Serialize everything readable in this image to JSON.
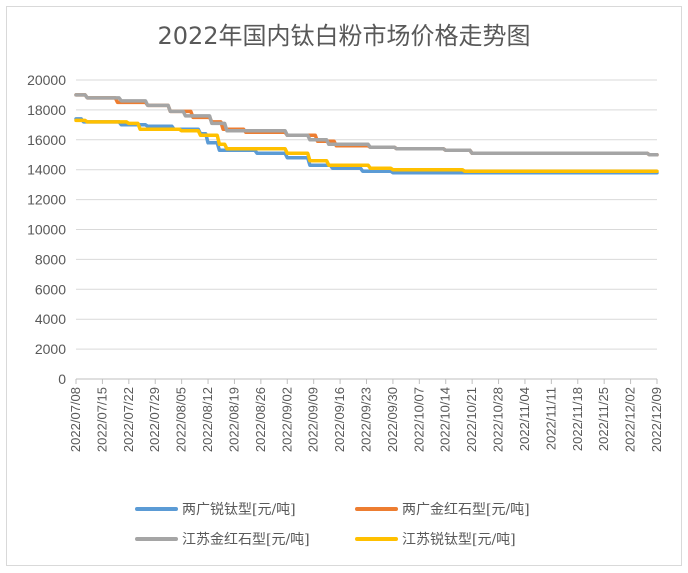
{
  "chart_data": {
    "type": "line",
    "title": "2022年国内钛白粉市场价格走势图",
    "xlabel": "",
    "ylabel": "",
    "ylim": [
      0,
      20000
    ],
    "yticks": [
      0,
      2000,
      4000,
      6000,
      8000,
      10000,
      12000,
      14000,
      16000,
      18000,
      20000
    ],
    "date_range": [
      "2022-07-08",
      "2022-12-09"
    ],
    "xticks": [
      "2022/07/08",
      "2022/07/15",
      "2022/07/22",
      "2022/07/29",
      "2022/08/05",
      "2022/08/12",
      "2022/08/19",
      "2022/08/26",
      "2022/09/02",
      "2022/09/09",
      "2022/09/16",
      "2022/09/23",
      "2022/09/30",
      "2022/10/07",
      "2022/10/14",
      "2022/10/21",
      "2022/10/28",
      "2022/11/04",
      "2022/11/11",
      "2022/11/18",
      "2022/11/25",
      "2022/12/02",
      "2022/12/09"
    ],
    "grid": true,
    "legend_position": "bottom",
    "series": [
      {
        "name": "两广锐钛型[元/吨]",
        "color": "#5b9bd5",
        "points": [
          [
            "2022-07-08",
            17400
          ],
          [
            "2022-07-10",
            17200
          ],
          [
            "2022-07-20",
            17000
          ],
          [
            "2022-07-27",
            16900
          ],
          [
            "2022-08-03",
            16700
          ],
          [
            "2022-08-10",
            16400
          ],
          [
            "2022-08-12",
            15800
          ],
          [
            "2022-08-15",
            15300
          ],
          [
            "2022-08-25",
            15100
          ],
          [
            "2022-09-02",
            14800
          ],
          [
            "2022-09-08",
            14300
          ],
          [
            "2022-09-14",
            14100
          ],
          [
            "2022-09-22",
            13900
          ],
          [
            "2022-09-30",
            13800
          ],
          [
            "2022-12-09",
            13800
          ]
        ]
      },
      {
        "name": "两广金红石型[元/吨]",
        "color": "#ed7d31",
        "points": [
          [
            "2022-07-08",
            19000
          ],
          [
            "2022-07-11",
            18800
          ],
          [
            "2022-07-19",
            18500
          ],
          [
            "2022-07-27",
            18300
          ],
          [
            "2022-08-02",
            17900
          ],
          [
            "2022-08-08",
            17500
          ],
          [
            "2022-08-13",
            17200
          ],
          [
            "2022-08-16",
            16700
          ],
          [
            "2022-08-22",
            16500
          ],
          [
            "2022-09-02",
            16300
          ],
          [
            "2022-09-10",
            15900
          ],
          [
            "2022-09-15",
            15600
          ],
          [
            "2022-09-24",
            15500
          ],
          [
            "2022-10-01",
            15400
          ],
          [
            "2022-10-14",
            15300
          ],
          [
            "2022-10-21",
            15100
          ],
          [
            "2022-12-05",
            15100
          ],
          [
            "2022-12-07",
            15000
          ],
          [
            "2022-12-09",
            15000
          ]
        ]
      },
      {
        "name": "江苏金红石型[元/吨]",
        "color": "#a5a5a5",
        "points": [
          [
            "2022-07-08",
            19000
          ],
          [
            "2022-07-11",
            18800
          ],
          [
            "2022-07-20",
            18600
          ],
          [
            "2022-07-27",
            18300
          ],
          [
            "2022-08-02",
            17900
          ],
          [
            "2022-08-06",
            17600
          ],
          [
            "2022-08-13",
            17100
          ],
          [
            "2022-08-17",
            16600
          ],
          [
            "2022-09-02",
            16300
          ],
          [
            "2022-09-08",
            16000
          ],
          [
            "2022-09-13",
            15700
          ],
          [
            "2022-09-24",
            15500
          ],
          [
            "2022-10-01",
            15400
          ],
          [
            "2022-10-14",
            15300
          ],
          [
            "2022-10-21",
            15100
          ],
          [
            "2022-12-05",
            15100
          ],
          [
            "2022-12-07",
            15000
          ],
          [
            "2022-12-09",
            15000
          ]
        ]
      },
      {
        "name": "江苏锐钛型[元/吨]",
        "color": "#ffc000",
        "points": [
          [
            "2022-07-08",
            17300
          ],
          [
            "2022-07-11",
            17200
          ],
          [
            "2022-07-22",
            17100
          ],
          [
            "2022-07-25",
            16700
          ],
          [
            "2022-08-05",
            16600
          ],
          [
            "2022-08-10",
            16300
          ],
          [
            "2022-08-15",
            15700
          ],
          [
            "2022-08-17",
            15400
          ],
          [
            "2022-08-26",
            15400
          ],
          [
            "2022-09-02",
            15100
          ],
          [
            "2022-09-08",
            14600
          ],
          [
            "2022-09-13",
            14300
          ],
          [
            "2022-09-24",
            14100
          ],
          [
            "2022-09-30",
            14000
          ],
          [
            "2022-10-19",
            13900
          ],
          [
            "2022-12-09",
            13900
          ]
        ]
      }
    ]
  }
}
